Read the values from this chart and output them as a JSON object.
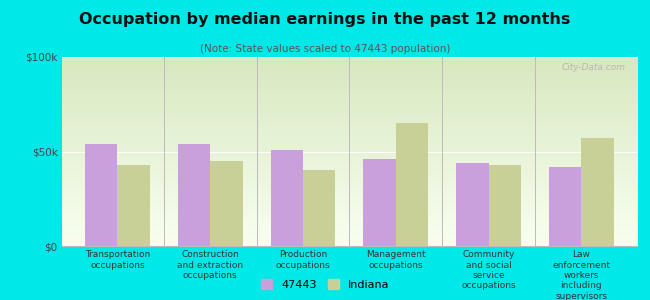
{
  "title": "Occupation by median earnings in the past 12 months",
  "subtitle": "(Note: State values scaled to 47443 population)",
  "background_color": "#00e8e8",
  "plot_bg_color_top": "#d8e8c0",
  "plot_bg_color_bottom": "#f8fff0",
  "categories": [
    "Transportation\noccupations",
    "Construction\nand extraction\noccupations",
    "Production\noccupations",
    "Management\noccupations",
    "Community\nand social\nservice\noccupations",
    "Law\nenforcement\nworkers\nincluding\nsupervisors"
  ],
  "values_47443": [
    54000,
    54000,
    51000,
    46000,
    44000,
    42000
  ],
  "values_indiana": [
    43000,
    45000,
    40000,
    65000,
    43000,
    57000
  ],
  "color_47443": "#c9a0dc",
  "color_indiana": "#c8d098",
  "ylabel_ticks": [
    "$0",
    "$50k",
    "$100k"
  ],
  "ytick_vals": [
    0,
    50000,
    100000
  ],
  "ylim": [
    0,
    100000
  ],
  "legend_label_1": "47443",
  "legend_label_2": "Indiana",
  "watermark": "City-Data.com",
  "bar_width": 0.35
}
